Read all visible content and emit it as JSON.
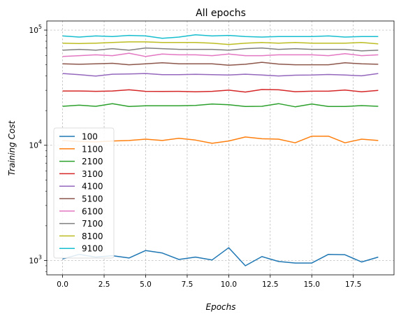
{
  "chart_data": {
    "type": "line",
    "title": "All epochs",
    "xlabel": "Epochs",
    "ylabel": "Training Cost",
    "yscale": "log",
    "xlim": [
      -0.95,
      19.95
    ],
    "ylim": [
      750,
      120000
    ],
    "x_ticks": [
      0.0,
      2.5,
      5.0,
      7.5,
      10.0,
      12.5,
      15.0,
      17.5
    ],
    "x_tick_labels": [
      "0.0",
      "2.5",
      "5.0",
      "7.5",
      "10.0",
      "12.5",
      "15.0",
      "17.5"
    ],
    "y_ticks": [
      1000,
      10000,
      100000
    ],
    "y_tick_base": "10",
    "y_tick_exponents": [
      "3",
      "4",
      "5"
    ],
    "grid": true,
    "legend_position": "center-left",
    "x": [
      0,
      1,
      2,
      3,
      4,
      5,
      6,
      7,
      8,
      9,
      10,
      11,
      12,
      13,
      14,
      15,
      16,
      17,
      18,
      19
    ],
    "series": [
      {
        "name": "100",
        "color": "#1f77b4",
        "values": [
          1030,
          1130,
          1070,
          1100,
          1050,
          1220,
          1160,
          1020,
          1070,
          1010,
          1290,
          900,
          1080,
          980,
          950,
          950,
          1130,
          1120,
          970,
          1070
        ]
      },
      {
        "name": "1100",
        "color": "#ff7f0e",
        "values": [
          11000,
          10800,
          10700,
          10900,
          11000,
          11300,
          11000,
          11500,
          11100,
          10400,
          10900,
          11800,
          11400,
          11300,
          10500,
          12000,
          12000,
          10500,
          11300,
          11000
        ]
      },
      {
        "name": "2100",
        "color": "#2ca02c",
        "values": [
          21800,
          22300,
          21800,
          23000,
          21700,
          22000,
          22000,
          22000,
          22200,
          22800,
          22500,
          21700,
          21800,
          23000,
          21600,
          22800,
          21700,
          21700,
          22100,
          21800
        ]
      },
      {
        "name": "3100",
        "color": "#d62728",
        "values": [
          29600,
          29600,
          29400,
          29600,
          30300,
          29400,
          29300,
          29400,
          29100,
          29400,
          30100,
          29000,
          30500,
          30300,
          29200,
          29500,
          29500,
          30200,
          29100,
          30000
        ]
      },
      {
        "name": "4100",
        "color": "#9467bd",
        "values": [
          42000,
          41000,
          39900,
          41400,
          41600,
          42000,
          41000,
          41000,
          41300,
          41000,
          40700,
          41400,
          40700,
          40000,
          40600,
          40700,
          41200,
          40700,
          40100,
          42000
        ]
      },
      {
        "name": "5100",
        "color": "#8c564b",
        "values": [
          51000,
          50500,
          51000,
          51500,
          50000,
          51000,
          52000,
          51000,
          51000,
          51000,
          49500,
          50500,
          52500,
          50700,
          50000,
          50000,
          50000,
          52000,
          51000,
          50500
        ]
      },
      {
        "name": "6100",
        "color": "#e377c2",
        "values": [
          59000,
          60000,
          61000,
          60000,
          63000,
          59000,
          62000,
          61000,
          61000,
          60000,
          62000,
          60000,
          60000,
          61000,
          61000,
          61000,
          60000,
          62500,
          60000,
          61000
        ]
      },
      {
        "name": "7100",
        "color": "#7f7f7f",
        "values": [
          67000,
          68000,
          67000,
          69000,
          67000,
          70000,
          69000,
          68000,
          68000,
          68000,
          67000,
          69000,
          70000,
          68000,
          69000,
          68000,
          68000,
          68000,
          66000,
          67000
        ]
      },
      {
        "name": "8100",
        "color": "#bcbd22",
        "values": [
          77000,
          76500,
          77000,
          78000,
          79000,
          79000,
          78000,
          78000,
          78000,
          77000,
          75000,
          77000,
          78000,
          77000,
          78000,
          77000,
          77000,
          77000,
          78000,
          76000
        ]
      },
      {
        "name": "9100",
        "color": "#17becf",
        "values": [
          89000,
          87000,
          89000,
          88000,
          90000,
          89000,
          85000,
          87000,
          91000,
          89000,
          90000,
          88000,
          87000,
          88000,
          88000,
          88000,
          89000,
          87000,
          88000,
          88000
        ]
      }
    ]
  }
}
